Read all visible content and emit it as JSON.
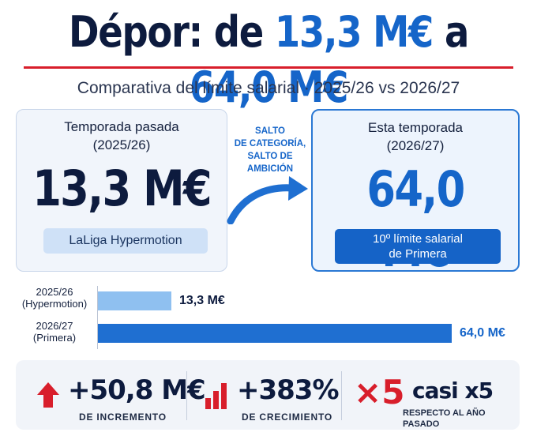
{
  "title": {
    "part1": "Dépor: de ",
    "highlight1": "13,3 M€",
    "part2": " a ",
    "highlight2": "64,0 M€"
  },
  "subtitle": "Comparativa del límite salarial · 2025/26 vs 2026/27",
  "left_card": {
    "label_line1": "Temporada pasada",
    "label_line2": "(2025/26)",
    "value": "13,3 M€",
    "pill": "LaLiga Hypermotion"
  },
  "right_card": {
    "label_line1": "Esta temporada",
    "label_line2": "(2026/27)",
    "value": "64,0 M€",
    "pill_line1": "10º límite salarial",
    "pill_line2": "de Primera"
  },
  "jump_text": {
    "line1": "SALTO",
    "line2": "DE CATEGORÍA,",
    "line3": "SALTO DE",
    "line4": "AMBICIÓN"
  },
  "chart_data": {
    "type": "bar",
    "orientation": "horizontal",
    "categories": [
      "2025/26 (Hypermotion)",
      "2026/27 (Primera)"
    ],
    "category_lines": [
      [
        "2025/26",
        "(Hypermotion)"
      ],
      [
        "2026/27",
        "(Primera)"
      ]
    ],
    "values": [
      13.3,
      64.0
    ],
    "value_labels": [
      "13,3 M€",
      "64,0 M€"
    ],
    "bar_colors": [
      "#8fc0f0",
      "#1f6fd1"
    ],
    "value_colors": [
      "#0d1b3e",
      "#1565c9"
    ],
    "xlim": [
      0,
      64.0
    ],
    "grid": false,
    "legend": "none"
  },
  "stats": {
    "increment_value": "+50,8 M€",
    "increment_label": "DE INCREMENTO",
    "growth_value": "+383%",
    "growth_label": "DE CRECIMIENTO",
    "multiplier_symbol": "×5",
    "multiplier_text": "casi x5",
    "multiplier_label": "RESPECTO AL AÑO PASADO"
  },
  "icons": {
    "increment": "arrow-up-icon",
    "growth": "bar-chart-icon"
  },
  "colors": {
    "navy": "#0d1b3e",
    "blue": "#1565c9",
    "red": "#d81e2b",
    "light_blue": "#8fc0f0"
  }
}
